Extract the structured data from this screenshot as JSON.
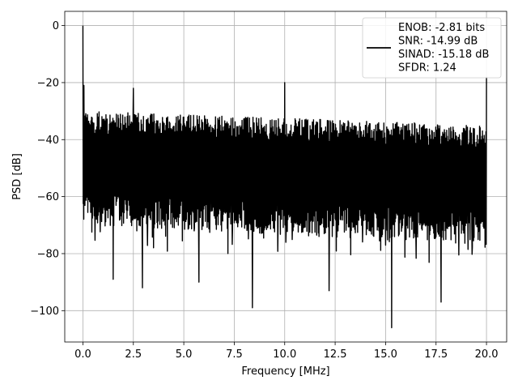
{
  "chart_data": {
    "type": "line",
    "xlabel": "Frequency [MHz]",
    "ylabel": "PSD [dB]",
    "xlim": [
      -0.9,
      21.0
    ],
    "ylim": [
      -111,
      5
    ],
    "x_ticks": [
      0.0,
      2.5,
      5.0,
      7.5,
      10.0,
      12.5,
      15.0,
      17.5,
      20.0
    ],
    "x_tick_labels": [
      "0.0",
      "2.5",
      "5.0",
      "7.5",
      "10.0",
      "12.5",
      "15.0",
      "17.5",
      "20.0"
    ],
    "y_ticks": [
      0,
      -20,
      -40,
      -60,
      -80,
      -100
    ],
    "y_tick_labels": [
      "0",
      "−20",
      "−40",
      "−60",
      "−80",
      "−100"
    ],
    "grid": true,
    "legend_position": "top-right",
    "series": [
      {
        "name": "ENOB: -2.81 bits\nSNR: -14.99 dB\nSINAD: -15.18 dB\nSFDR: 1.24",
        "color": "#000000",
        "x_range": [
          0.0,
          20.0
        ],
        "noise_floor_upper_db": [
          -30,
          -35
        ],
        "noise_floor_lower_db": [
          -70,
          -77
        ],
        "spurs": [
          {
            "x": 0.0,
            "y": 0
          },
          {
            "x": 0.05,
            "y": -21
          },
          {
            "x": 2.5,
            "y": -22
          },
          {
            "x": 10.0,
            "y": -20
          },
          {
            "x": 20.0,
            "y": -18
          },
          {
            "x": 8.4,
            "y": -99
          },
          {
            "x": 15.3,
            "y": -106
          },
          {
            "x": 17.75,
            "y": -97
          },
          {
            "x": 12.2,
            "y": -93
          },
          {
            "x": 2.95,
            "y": -92
          },
          {
            "x": 5.75,
            "y": -90
          },
          {
            "x": 1.5,
            "y": -89
          }
        ]
      }
    ]
  }
}
